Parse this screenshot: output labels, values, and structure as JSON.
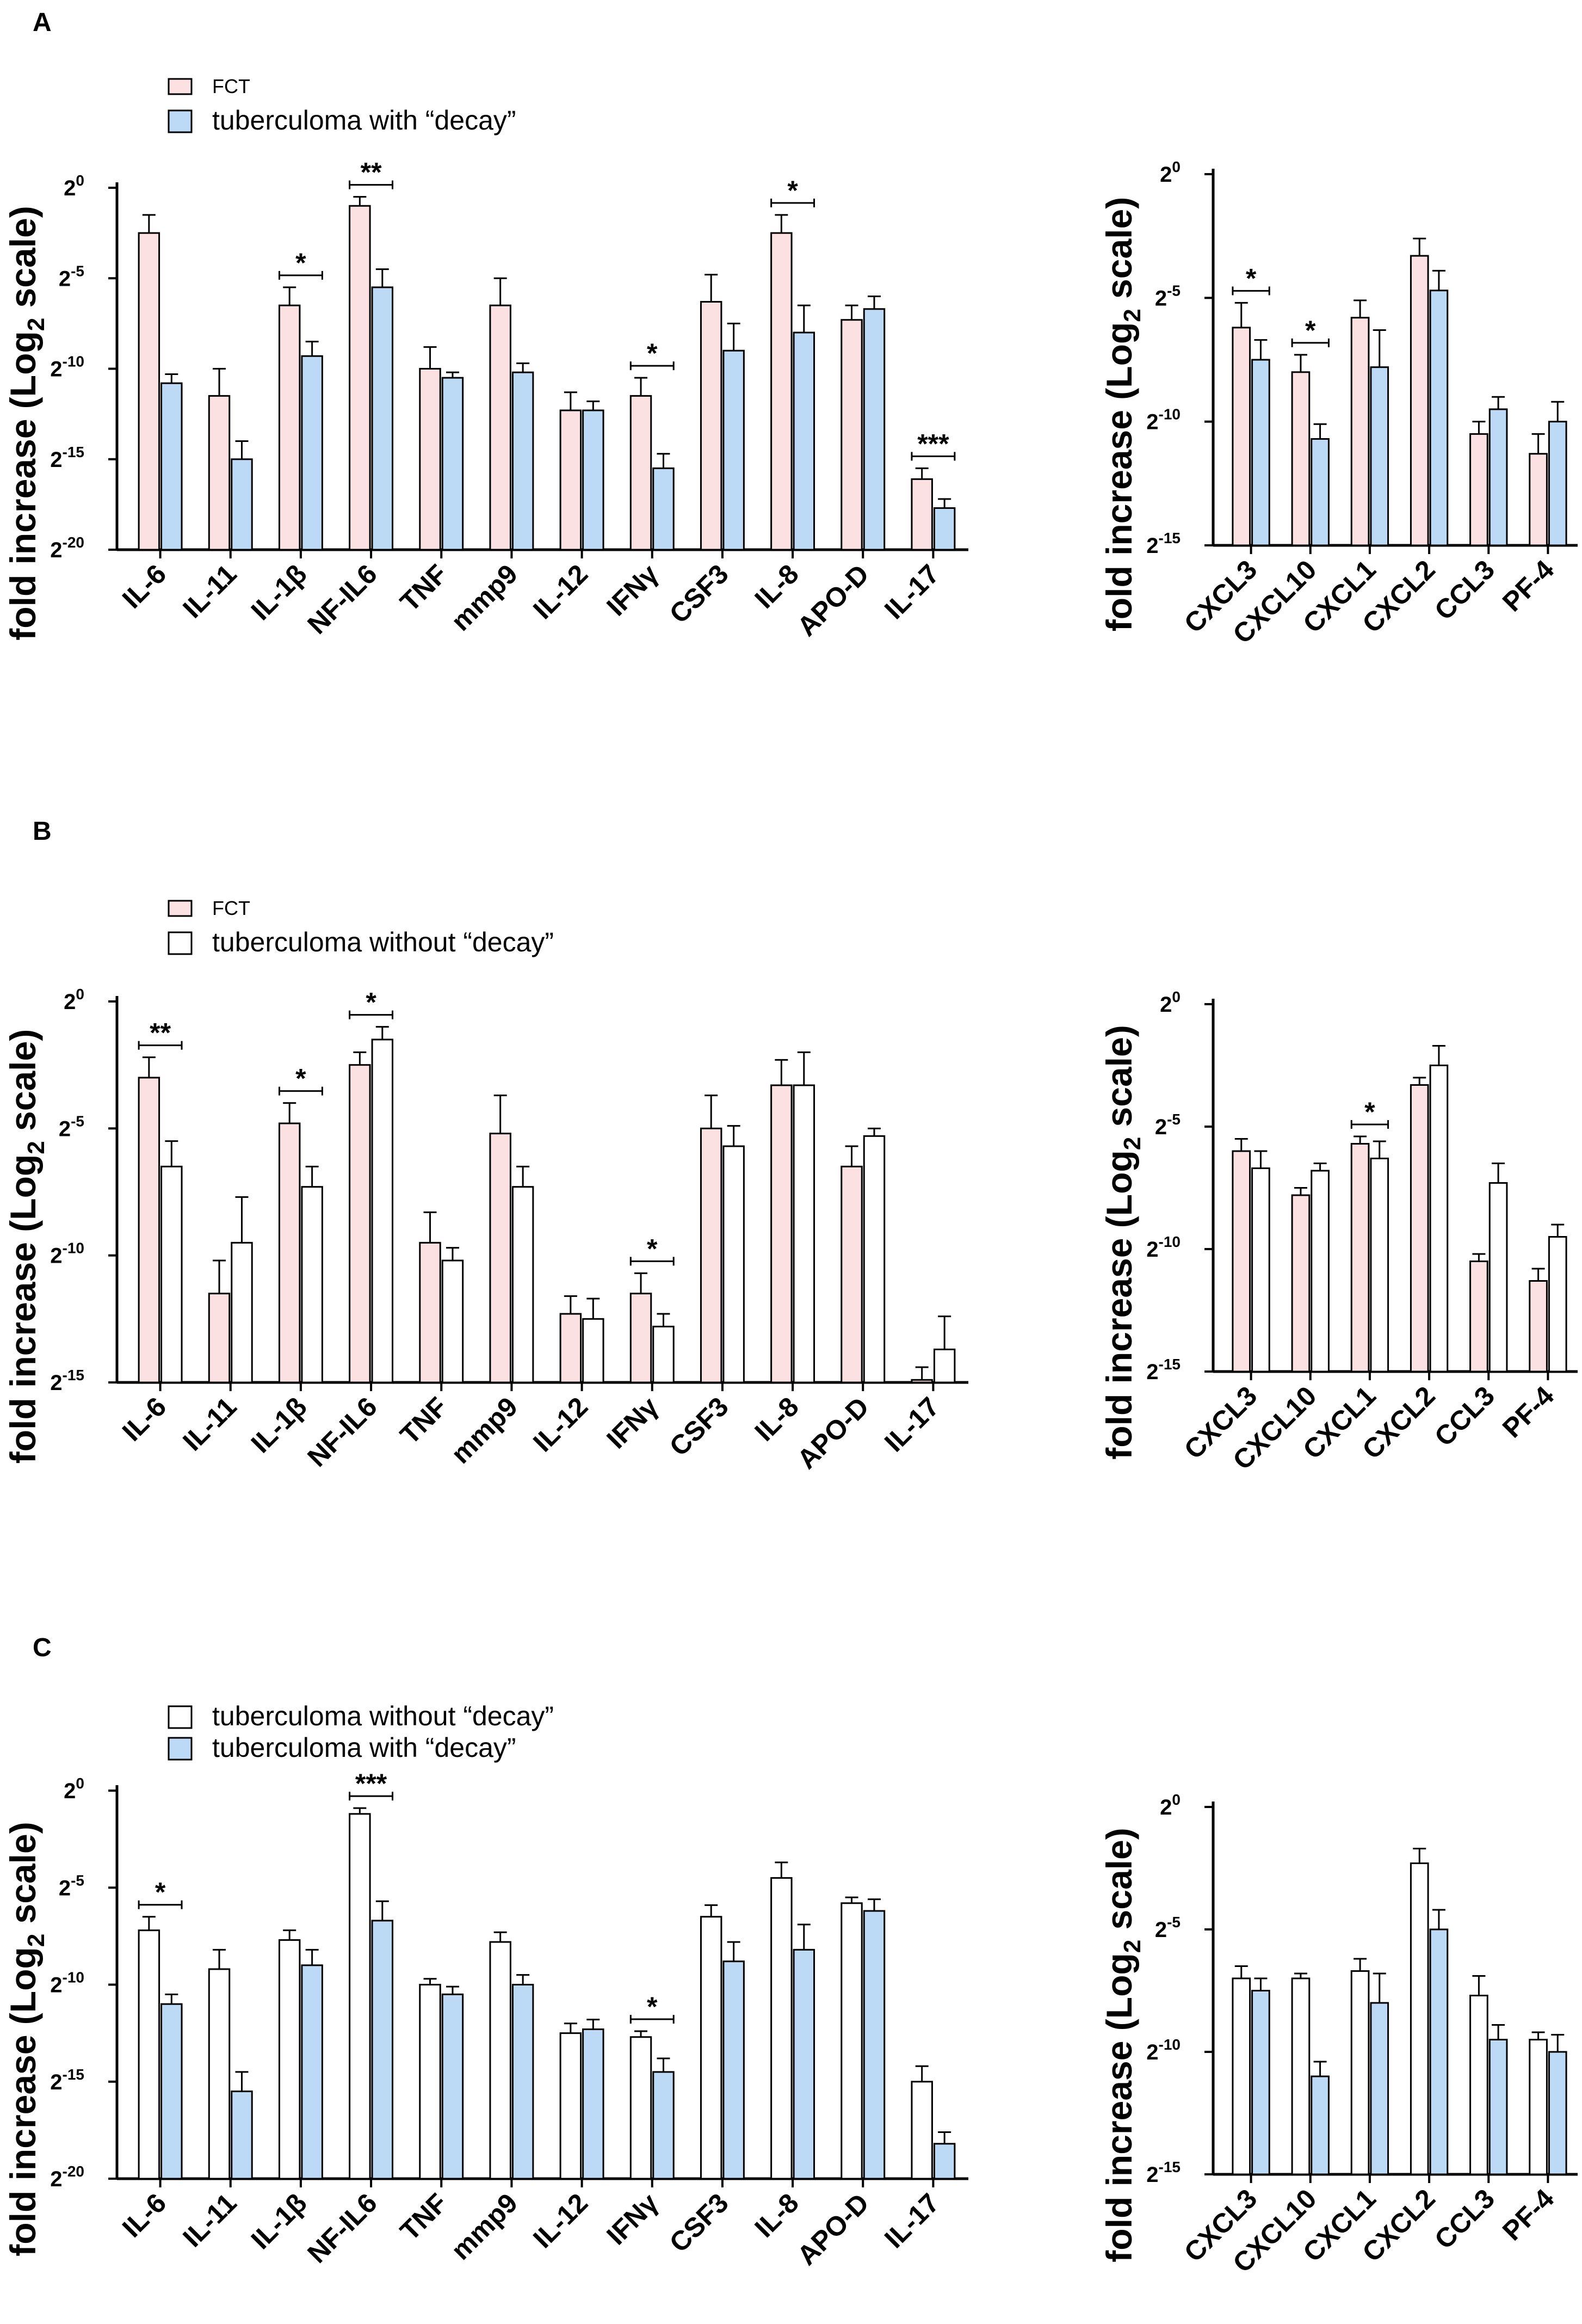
{
  "colors": {
    "fct": "#fbe1e1",
    "decay": "#bcdaf5",
    "nodecay": "#ffffff",
    "stroke": "#000000"
  },
  "panels": [
    {
      "letter": "A",
      "legend": [
        "FCT",
        "tuberculoma with “decay”"
      ]
    },
    {
      "letter": "B",
      "legend": [
        "FCT",
        "tuberculoma without “decay”"
      ]
    },
    {
      "letter": "C",
      "legend": [
        "tuberculoma without “decay”",
        "tuberculoma with “decay”"
      ]
    }
  ],
  "chart_data": [
    {
      "id": "A-left",
      "type": "bar",
      "ylabel": "fold increase (Log2 scale)",
      "ylim": [
        -20,
        0
      ],
      "yticks": [
        0,
        -5,
        -10,
        -15,
        -20
      ],
      "categories": [
        "IL-6",
        "IL-11",
        "IL-1β",
        "NF-IL6",
        "TNF",
        "mmp9",
        "IL-12",
        "IFNγ",
        "CSF3",
        "IL-8",
        "APO-D",
        "IL-17"
      ],
      "series": [
        {
          "name": "FCT",
          "color": "fct",
          "values": [
            -2.5,
            -11.5,
            -6.5,
            -1.0,
            -10.0,
            -6.5,
            -12.3,
            -11.5,
            -6.3,
            -2.5,
            -7.3,
            -16.1
          ],
          "errors": [
            1.0,
            1.5,
            1.0,
            0.5,
            1.2,
            1.5,
            1.0,
            1.0,
            1.5,
            1.0,
            0.8,
            0.6
          ]
        },
        {
          "name": "tuberculoma with “decay”",
          "color": "decay",
          "values": [
            -10.8,
            -15.0,
            -9.3,
            -5.5,
            -10.5,
            -10.2,
            -12.3,
            -15.5,
            -9.0,
            -8.0,
            -6.7,
            -17.7
          ],
          "errors": [
            0.5,
            1.0,
            0.8,
            1.0,
            0.3,
            0.5,
            0.5,
            0.8,
            1.5,
            1.5,
            0.7,
            0.5
          ]
        }
      ],
      "significance": [
        {
          "category": "IL-1β",
          "label": "*"
        },
        {
          "category": "NF-IL6",
          "label": "**"
        },
        {
          "category": "IFNγ",
          "label": "*"
        },
        {
          "category": "IL-8",
          "label": "*"
        },
        {
          "category": "IL-17",
          "label": "***"
        }
      ]
    },
    {
      "id": "A-right",
      "type": "bar",
      "ylabel": "fold increase (Log2 scale)",
      "ylim": [
        -15,
        0
      ],
      "yticks": [
        0,
        -5,
        -10,
        -15
      ],
      "categories": [
        "CXCL3",
        "CXCL10",
        "CXCL1",
        "CXCL2",
        "CCL3",
        "PF-4"
      ],
      "series": [
        {
          "name": "FCT",
          "color": "fct",
          "values": [
            -6.2,
            -8.0,
            -5.8,
            -3.3,
            -10.5,
            -11.3
          ],
          "errors": [
            1.0,
            0.7,
            0.7,
            0.7,
            0.5,
            0.8
          ]
        },
        {
          "name": "tuberculoma with “decay”",
          "color": "decay",
          "values": [
            -7.5,
            -10.7,
            -7.8,
            -4.7,
            -9.5,
            -10.0
          ],
          "errors": [
            0.8,
            0.6,
            1.5,
            0.8,
            0.5,
            0.8
          ]
        }
      ],
      "significance": [
        {
          "category": "CXCL3",
          "label": "*"
        },
        {
          "category": "CXCL10",
          "label": "*"
        }
      ]
    },
    {
      "id": "B-left",
      "type": "bar",
      "ylabel": "fold increase (Log2 scale)",
      "ylim": [
        -15,
        0
      ],
      "yticks": [
        0,
        -5,
        -10,
        -15
      ],
      "categories": [
        "IL-6",
        "IL-11",
        "IL-1β",
        "NF-IL6",
        "TNF",
        "mmp9",
        "IL-12",
        "IFNγ",
        "CSF3",
        "IL-8",
        "APO-D",
        "IL-17"
      ],
      "series": [
        {
          "name": "FCT",
          "color": "fct",
          "values": [
            -3.0,
            -11.5,
            -4.8,
            -2.5,
            -9.5,
            -5.2,
            -12.3,
            -11.5,
            -5.0,
            -3.3,
            -6.5,
            -14.9
          ],
          "errors": [
            0.8,
            1.3,
            0.8,
            0.5,
            1.2,
            1.5,
            0.7,
            0.8,
            1.3,
            1.0,
            0.8,
            0.5
          ]
        },
        {
          "name": "tuberculoma without “decay”",
          "color": "nodecay",
          "values": [
            -6.5,
            -9.5,
            -7.3,
            -1.5,
            -10.2,
            -7.3,
            -12.5,
            -12.8,
            -5.7,
            -3.3,
            -5.3,
            -13.7
          ],
          "errors": [
            1.0,
            1.8,
            0.8,
            0.5,
            0.5,
            0.8,
            0.8,
            0.5,
            0.8,
            1.3,
            0.3,
            1.3
          ]
        }
      ],
      "significance": [
        {
          "category": "IL-6",
          "label": "**"
        },
        {
          "category": "IL-1β",
          "label": "*"
        },
        {
          "category": "NF-IL6",
          "label": "*"
        },
        {
          "category": "IFNγ",
          "label": "*"
        }
      ]
    },
    {
      "id": "B-right",
      "type": "bar",
      "ylabel": "fold increase (Log2 scale)",
      "ylim": [
        -15,
        0
      ],
      "yticks": [
        0,
        -5,
        -10,
        -15
      ],
      "categories": [
        "CXCL3",
        "CXCL10",
        "CXCL1",
        "CXCL2",
        "CCL3",
        "PF-4"
      ],
      "series": [
        {
          "name": "FCT",
          "color": "fct",
          "values": [
            -6.0,
            -7.8,
            -5.7,
            -3.3,
            -10.5,
            -11.3
          ],
          "errors": [
            0.5,
            0.3,
            0.3,
            0.3,
            0.3,
            0.5
          ]
        },
        {
          "name": "tuberculoma without “decay”",
          "color": "nodecay",
          "values": [
            -6.7,
            -6.8,
            -6.3,
            -2.5,
            -7.3,
            -9.5
          ],
          "errors": [
            0.7,
            0.3,
            0.7,
            0.8,
            0.8,
            0.5
          ]
        }
      ],
      "significance": [
        {
          "category": "CXCL1",
          "label": "*"
        }
      ]
    },
    {
      "id": "C-left",
      "type": "bar",
      "ylabel": "fold increase (Log2 scale)",
      "ylim": [
        -20,
        0
      ],
      "yticks": [
        0,
        -5,
        -10,
        -15,
        -20
      ],
      "categories": [
        "IL-6",
        "IL-11",
        "IL-1β",
        "NF-IL6",
        "TNF",
        "mmp9",
        "IL-12",
        "IFNγ",
        "CSF3",
        "IL-8",
        "APO-D",
        "IL-17"
      ],
      "series": [
        {
          "name": "tuberculoma without “decay”",
          "color": "nodecay",
          "values": [
            -7.2,
            -9.2,
            -7.7,
            -1.2,
            -10.0,
            -7.8,
            -12.5,
            -12.7,
            -6.5,
            -4.5,
            -5.8,
            -15.0
          ],
          "errors": [
            0.7,
            1.0,
            0.5,
            0.3,
            0.3,
            0.5,
            0.5,
            0.3,
            0.6,
            0.8,
            0.3,
            0.8
          ]
        },
        {
          "name": "tuberculoma with “decay”",
          "color": "decay",
          "values": [
            -11.0,
            -15.5,
            -9.0,
            -6.7,
            -10.5,
            -10.0,
            -12.3,
            -14.5,
            -8.8,
            -8.2,
            -6.2,
            -18.2
          ],
          "errors": [
            0.5,
            1.0,
            0.8,
            1.0,
            0.4,
            0.5,
            0.5,
            0.7,
            1.0,
            1.3,
            0.6,
            0.6
          ]
        }
      ],
      "significance": [
        {
          "category": "IL-6",
          "label": "*"
        },
        {
          "category": "NF-IL6",
          "label": "***"
        },
        {
          "category": "IFNγ",
          "label": "*"
        }
      ]
    },
    {
      "id": "C-right",
      "type": "bar",
      "ylabel": "fold increase (Log2 scale)",
      "ylim": [
        -15,
        0
      ],
      "yticks": [
        0,
        -5,
        -10,
        -15
      ],
      "categories": [
        "CXCL3",
        "CXCL10",
        "CXCL1",
        "CXCL2",
        "CCL3",
        "PF-4"
      ],
      "series": [
        {
          "name": "tuberculoma without “decay”",
          "color": "nodecay",
          "values": [
            -7.0,
            -7.0,
            -6.7,
            -2.3,
            -7.7,
            -9.5
          ],
          "errors": [
            0.5,
            0.2,
            0.5,
            0.6,
            0.8,
            0.3
          ]
        },
        {
          "name": "tuberculoma with “decay”",
          "color": "decay",
          "values": [
            -7.5,
            -11.0,
            -8.0,
            -5.0,
            -9.5,
            -10.0
          ],
          "errors": [
            0.5,
            0.6,
            1.2,
            0.8,
            0.6,
            0.7
          ]
        }
      ],
      "significance": []
    }
  ]
}
